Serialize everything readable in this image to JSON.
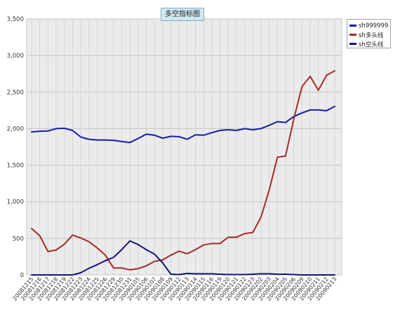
{
  "chart_data": {
    "type": "line",
    "title": "多空指标图",
    "ylim": [
      0,
      3500
    ],
    "yticks": [
      "0",
      "500",
      "1,000",
      "1,500",
      "2,000",
      "2,500",
      "3,000",
      "3,500"
    ],
    "ytick_values": [
      0,
      500,
      1000,
      1500,
      2000,
      2500,
      3000,
      3500
    ],
    "grid": true,
    "legend_position": "top-right",
    "categories": [
      "20081215",
      "20081216",
      "20081217",
      "20081218",
      "20081219",
      "20081222",
      "20081223",
      "20081224",
      "20081225",
      "20081226",
      "20081229",
      "20081230",
      "20081231",
      "20090105",
      "20090106",
      "20090107",
      "20090108",
      "20090109",
      "20090112",
      "20090113",
      "20090114",
      "20090115",
      "20090116",
      "20090119",
      "20090120",
      "20090121",
      "20090122",
      "20090123",
      "20090202",
      "20090203",
      "20090204",
      "20090205",
      "20090206",
      "20090209",
      "20090210",
      "20090211",
      "20090212",
      "20090213"
    ],
    "series": [
      {
        "name": "sh999999",
        "color": "#1a1aa6",
        "values": [
          1955,
          1965,
          1968,
          2000,
          2005,
          1975,
          1885,
          1855,
          1845,
          1845,
          1840,
          1825,
          1810,
          1865,
          1925,
          1910,
          1870,
          1895,
          1890,
          1855,
          1915,
          1910,
          1945,
          1975,
          1985,
          1975,
          2000,
          1985,
          2000,
          2045,
          2095,
          2085,
          2165,
          2215,
          2255,
          2255,
          2245,
          2305
        ]
      },
      {
        "name": "sh多头线",
        "color": "#a52a2a",
        "values": [
          635,
          535,
          320,
          340,
          420,
          545,
          505,
          455,
          370,
          270,
          95,
          95,
          70,
          85,
          125,
          185,
          205,
          270,
          325,
          290,
          345,
          410,
          430,
          430,
          515,
          515,
          565,
          580,
          790,
          1160,
          1610,
          1625,
          2130,
          2575,
          2715,
          2525,
          2730,
          2790
        ]
      },
      {
        "name": "sh空头线",
        "color": "#14147a",
        "values": [
          0,
          0,
          0,
          0,
          0,
          0,
          30,
          90,
          140,
          195,
          240,
          345,
          465,
          415,
          345,
          285,
          165,
          10,
          5,
          20,
          15,
          15,
          15,
          10,
          5,
          5,
          5,
          10,
          15,
          15,
          10,
          10,
          5,
          0,
          0,
          0,
          0,
          0
        ]
      }
    ]
  }
}
